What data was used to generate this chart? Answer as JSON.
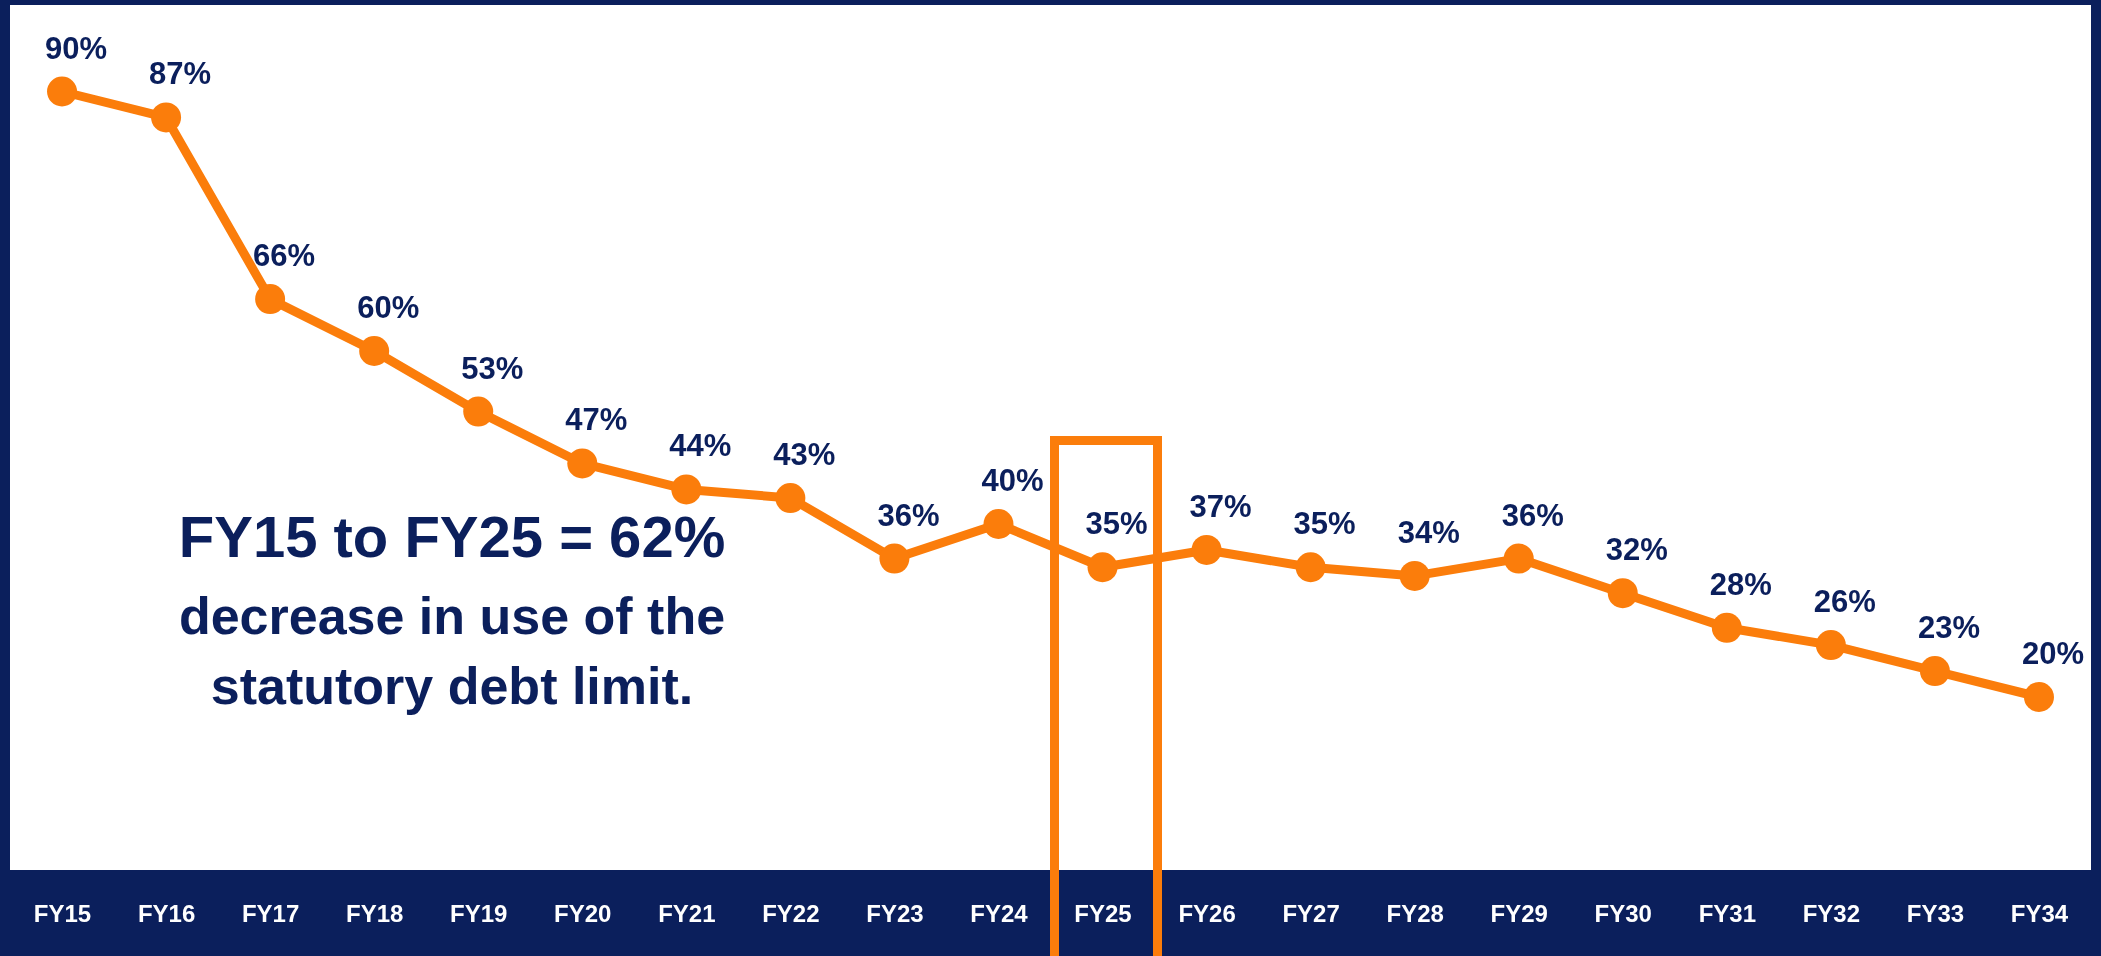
{
  "chart_data": {
    "type": "line",
    "categories": [
      "FY15",
      "FY16",
      "FY17",
      "FY18",
      "FY19",
      "FY20",
      "FY21",
      "FY22",
      "FY23",
      "FY24",
      "FY25",
      "FY26",
      "FY27",
      "FY28",
      "FY29",
      "FY30",
      "FY31",
      "FY32",
      "FY33",
      "FY34"
    ],
    "series": [
      {
        "color": "#fb7d0b",
        "values": [
          90,
          87,
          66,
          60,
          53,
          47,
          44,
          43,
          36,
          40,
          35,
          37,
          35,
          34,
          36,
          32,
          28,
          26,
          23,
          20
        ],
        "value_labels": [
          "90%",
          "87%",
          "66%",
          "60%",
          "53%",
          "47%",
          "44%",
          "43%",
          "36%",
          "40%",
          "35%",
          "37%",
          "35%",
          "34%",
          "36%",
          "32%",
          "28%",
          "26%",
          "23%",
          "20%"
        ]
      }
    ],
    "marker": "circle",
    "annotations": [
      "FY15 to FY25 = 62%",
      "decrease in use of the statutory debt limit."
    ]
  }
}
